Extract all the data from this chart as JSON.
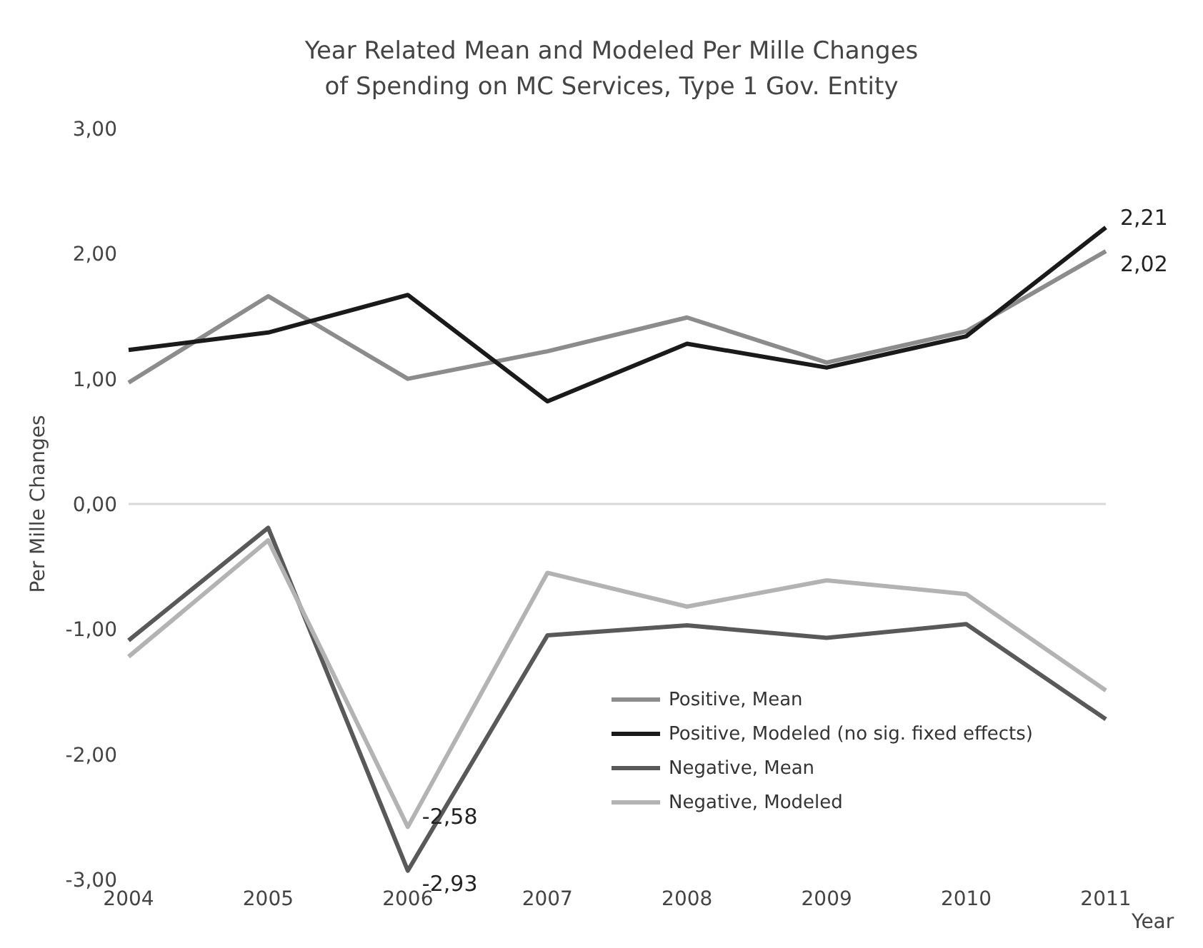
{
  "chart_data": {
    "type": "line",
    "title": "Year Related Mean and Modeled Per Mille Changes of Spending on MC Services, Type 1 Gov. Entity",
    "xlabel": "Year",
    "ylabel": "Per Mille Changes",
    "categories": [
      "2004",
      "2005",
      "2006",
      "2007",
      "2008",
      "2009",
      "2010",
      "2011"
    ],
    "series": [
      {
        "name": "Positive, Mean",
        "color": "#8c8c8c",
        "values": [
          0.97,
          1.66,
          1.0,
          1.22,
          1.49,
          1.13,
          1.38,
          2.02
        ],
        "value_labels": [
          null,
          null,
          null,
          null,
          null,
          null,
          null,
          "2,02"
        ]
      },
      {
        "name": "Positive, Modeled (no sig. fixed effects)",
        "color": "#1a1a1a",
        "values": [
          1.23,
          1.37,
          1.67,
          0.82,
          1.28,
          1.09,
          1.34,
          2.21
        ],
        "value_labels": [
          null,
          null,
          null,
          null,
          null,
          null,
          null,
          "2,21"
        ]
      },
      {
        "name": "Negative, Mean",
        "color": "#595959",
        "values": [
          -1.09,
          -0.19,
          -2.93,
          -1.05,
          -0.97,
          -1.07,
          -0.96,
          -1.72
        ],
        "value_labels": [
          null,
          null,
          "-2,93",
          null,
          null,
          null,
          null,
          null
        ]
      },
      {
        "name": "Negative, Modeled",
        "color": "#b3b3b3",
        "values": [
          -1.22,
          -0.29,
          -2.58,
          -0.55,
          -0.82,
          -0.61,
          -0.72,
          -1.49
        ],
        "value_labels": [
          null,
          null,
          "-2,58",
          null,
          null,
          null,
          null,
          null
        ]
      }
    ],
    "ylim": [
      -3,
      3
    ],
    "yticks": [
      {
        "value": -3,
        "label": "-3,00"
      },
      {
        "value": -2,
        "label": "-2,00"
      },
      {
        "value": -1,
        "label": "-1,00"
      },
      {
        "value": 0,
        "label": "0,00"
      },
      {
        "value": 1,
        "label": "1,00"
      },
      {
        "value": 2,
        "label": "2,00"
      },
      {
        "value": 3,
        "label": "3,00"
      }
    ],
    "ref_lines": [
      {
        "axis": "y",
        "value": 0,
        "color": "#d9d9d9"
      }
    ],
    "grid": false,
    "legend": "bottom right",
    "marker": "none",
    "line_style": "solid"
  }
}
